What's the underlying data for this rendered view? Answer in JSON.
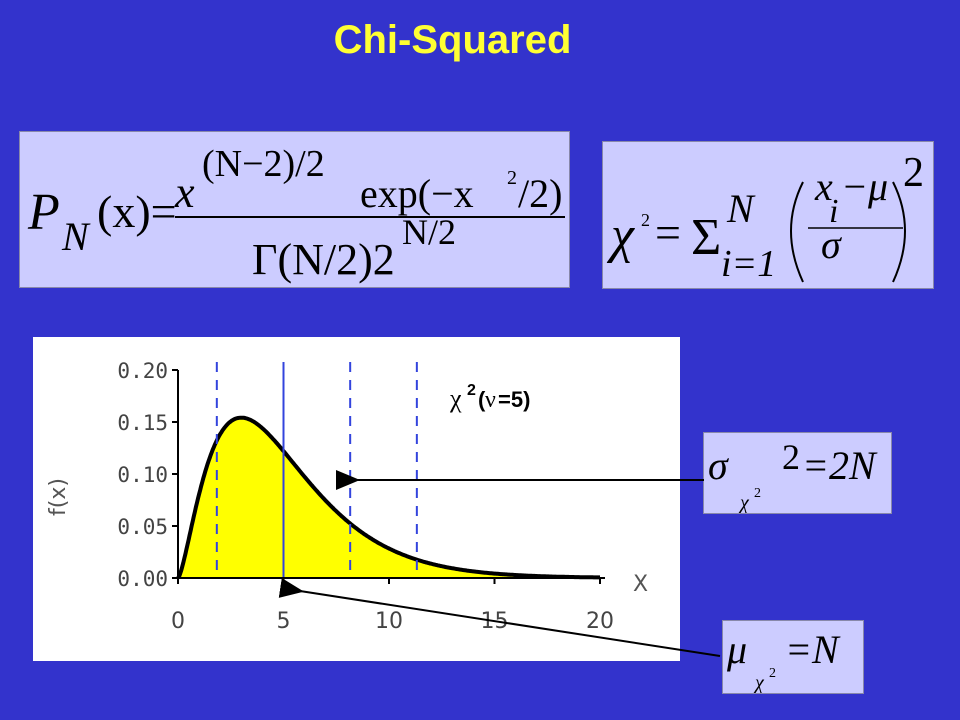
{
  "title": "Chi-Squared",
  "formulas": {
    "pdf": {
      "lhs": "P",
      "lhs_sub": "N",
      "lhs_arg": "(x)=",
      "num_base": "x",
      "num_exp": "(N−2)/2",
      "num_exp_fn": "exp(−x",
      "num_exp_sq": "2",
      "num_exp_tail": "/2)",
      "den_gamma": "Γ(N/2)2",
      "den_exp": "N/2"
    },
    "chisq": {
      "lhs": "χ",
      "lhs_sq": "2",
      "eq": "=",
      "sum": "Σ",
      "sum_top": "N",
      "sum_bot": "i=1",
      "num_x": "x",
      "num_i": "i",
      "num_minus_mu": "−μ",
      "den": "σ",
      "power": "2"
    },
    "variance": {
      "sigma": "σ",
      "sub_chi": "χ",
      "sub_sq": "2",
      "power": "2",
      "rhs": "=2N"
    },
    "mean": {
      "mu": "μ",
      "sub_chi": "χ",
      "sub_sq": "2",
      "rhs": "=N"
    }
  },
  "plot_label": {
    "chi": "χ",
    "sq": "2",
    "open": "(",
    "nu": "ν",
    "rest": "=5)"
  },
  "chart_data": {
    "type": "area",
    "ylabel": "f(x)",
    "xlabel": "X",
    "x_ticks": [
      "0",
      "5",
      "10",
      "15",
      "20"
    ],
    "y_ticks": [
      "0.00",
      "0.05",
      "0.10",
      "0.15",
      "0.20"
    ],
    "xlim": [
      0,
      20
    ],
    "ylim": [
      0,
      0.2
    ],
    "dof": 5,
    "fill_color": "#ffff00",
    "line_color": "#000000",
    "mean_line_x": 5,
    "dashed_lines_x": [
      1.84,
      8.16,
      11.32
    ],
    "guide_color": "#3344dd"
  }
}
